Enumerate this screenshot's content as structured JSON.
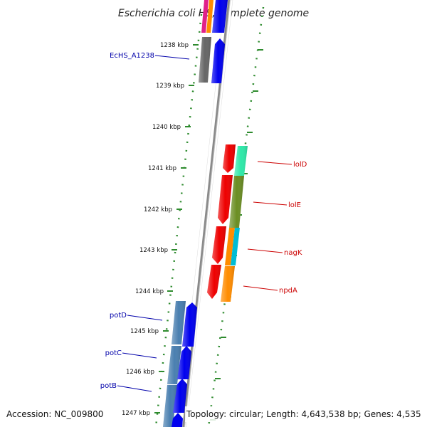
{
  "title": "Escherichia coli HS, complete genome",
  "footer": {
    "accession": "Accession: NC_009800",
    "topology": "Topology: circular; Length: 4,643,538 bp; Genes: 4,535"
  },
  "ticks": [
    "1238 kbp",
    "1239 kbp",
    "1240 kbp",
    "1241 kbp",
    "1242 kbp",
    "1243 kbp",
    "1244 kbp",
    "1245 kbp",
    "1246 kbp",
    "1247 kbp"
  ],
  "gene_labels": {
    "left": [
      "EcHS_A1238",
      "potD",
      "potC",
      "potB"
    ],
    "right": [
      "lolD",
      "lolE",
      "nagK",
      "npdA"
    ]
  },
  "colors": {
    "backbone": "#8a8a8a",
    "dotted_track": "#2e8b2e",
    "left_label": "#0000aa",
    "right_label": "#cc0000",
    "blue_gene": "#0000ee",
    "red_gene": "#ee0000",
    "gray_gene": "#666666",
    "steel_gene": "#4a7fb0",
    "teal_gene": "#2ee8a8",
    "olive_gene": "#6b8e23",
    "orange_gene": "#ff8c00",
    "cyan_gene": "#00bcd4",
    "magenta_gene": "#e0218a"
  }
}
